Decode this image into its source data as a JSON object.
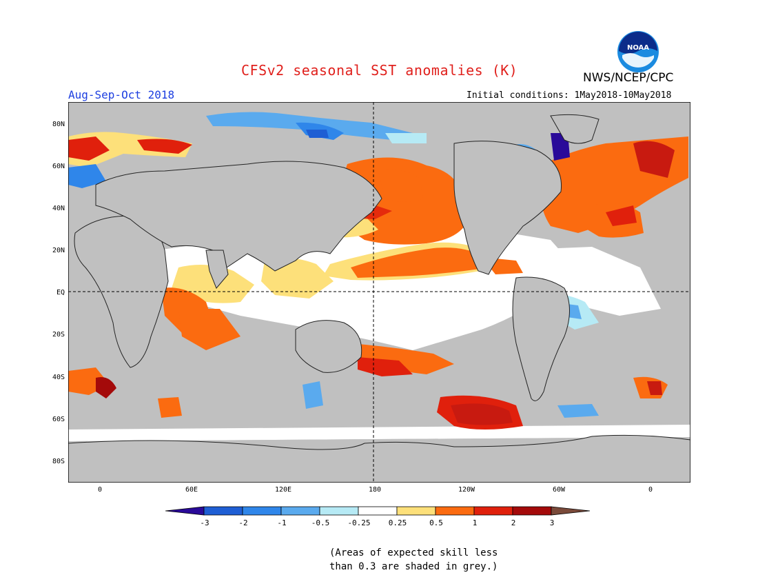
{
  "title": "CFSv2 seasonal SST anomalies (K)",
  "agency": "NWS/NCEP/CPC",
  "season": "Aug-Sep-Oct 2018",
  "initial_conditions": "Initial conditions: 1May2018-10May2018",
  "logo_text": "NOAA",
  "latitude_labels": [
    "80N",
    "60N",
    "40N",
    "20N",
    "EQ",
    "20S",
    "40S",
    "60S",
    "80S"
  ],
  "longitude_labels": [
    "0",
    "60E",
    "120E",
    "180",
    "120W",
    "60W",
    "0"
  ],
  "colorbar": {
    "labels": [
      "-3",
      "-2",
      "-1",
      "-0.5",
      "-0.25",
      "0.25",
      "0.5",
      "1",
      "2",
      "3"
    ],
    "colors": [
      "#2a0a99",
      "#1e5ed4",
      "#2f86ea",
      "#5aaaee",
      "#b6eaf5",
      "#ffffff",
      "#fde07a",
      "#fb6b10",
      "#e0200c",
      "#a40a0a",
      "#7a4a3a"
    ]
  },
  "note_lines": [
    "(Areas of expected skill less",
    "than 0.3 are shaded in grey.)"
  ],
  "colors": {
    "land_and_low_skill": "#c0c0c0",
    "title_red": "#e0201c",
    "season_blue": "#1c3ee0"
  }
}
